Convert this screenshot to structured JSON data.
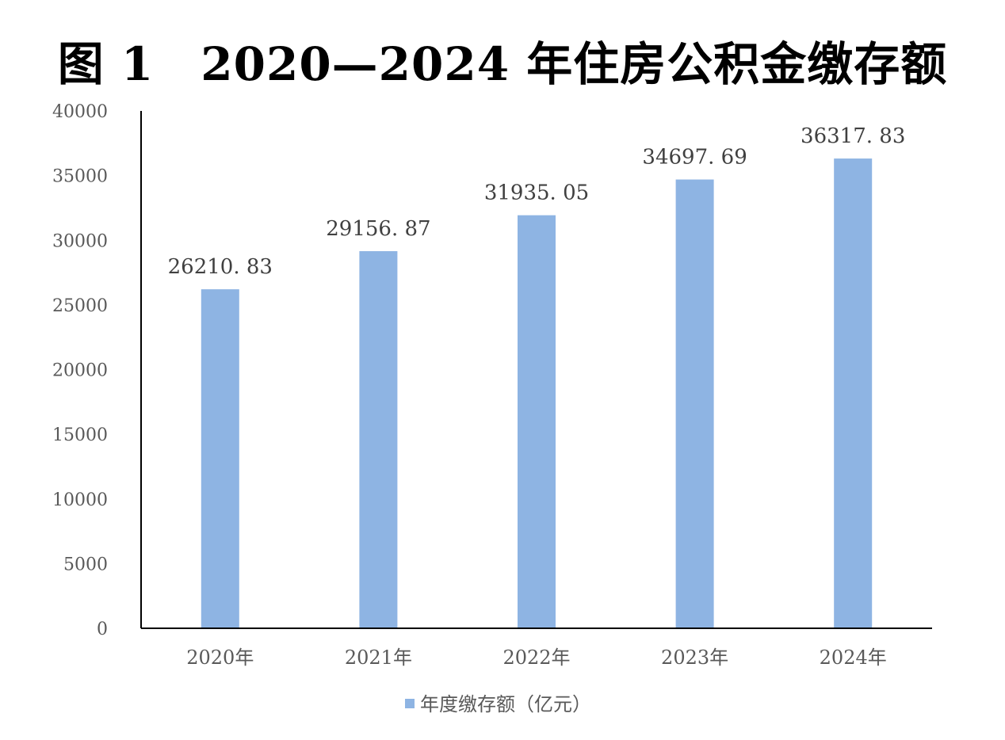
{
  "chart_data": {
    "type": "bar",
    "title": "图 1　2020—2024 年住房公积金缴存额",
    "categories": [
      "2020年",
      "2021年",
      "2022年",
      "2023年",
      "2024年"
    ],
    "series": [
      {
        "name": "年度缴存额（亿元）",
        "values": [
          26210.83,
          29156.87,
          31935.05,
          34697.69,
          36317.83
        ],
        "color": "#8EB4E3"
      }
    ],
    "data_labels": [
      "26210. 83",
      "29156. 87",
      "31935. 05",
      "34697. 69",
      "36317. 83"
    ],
    "yticks": [
      "0",
      "5000",
      "10000",
      "15000",
      "20000",
      "25000",
      "30000",
      "35000",
      "40000"
    ],
    "ylim": [
      0,
      40000
    ],
    "xlabel": "",
    "ylabel": "",
    "grid": false,
    "legend_position": "bottom"
  }
}
